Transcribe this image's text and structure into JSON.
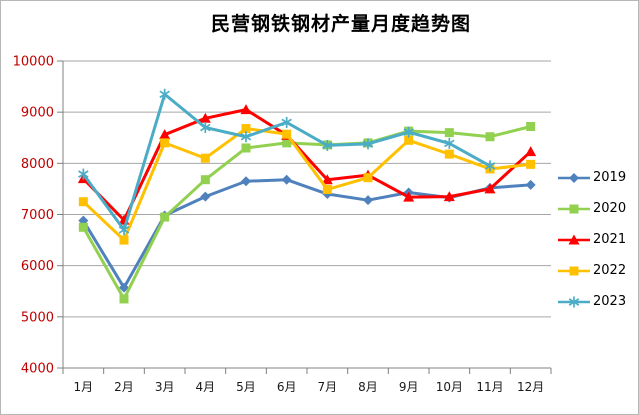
{
  "chart_data": {
    "type": "line",
    "title": "民营钢铁钢材产量月度趋势图",
    "categories": [
      "1月",
      "2月",
      "3月",
      "4月",
      "5月",
      "6月",
      "7月",
      "8月",
      "9月",
      "10月",
      "11月",
      "12月"
    ],
    "series": [
      {
        "name": "2019",
        "color": "#4F81BD",
        "marker": "diamond",
        "values": [
          6880,
          5570,
          6980,
          7350,
          7650,
          7680,
          7400,
          7280,
          7430,
          7330,
          7520,
          7580
        ]
      },
      {
        "name": "2020",
        "color": "#92D050",
        "marker": "square",
        "values": [
          6750,
          5350,
          6950,
          7680,
          8300,
          8400,
          8360,
          8400,
          8630,
          8600,
          8520,
          8720
        ]
      },
      {
        "name": "2021",
        "color": "#FF0000",
        "marker": "triangle",
        "values": [
          7700,
          6890,
          8560,
          8880,
          9050,
          8550,
          7680,
          7770,
          7340,
          7350,
          7500,
          8230
        ]
      },
      {
        "name": "2022",
        "color": "#FFC000",
        "marker": "square",
        "values": [
          7250,
          6500,
          8400,
          8100,
          8680,
          8570,
          7490,
          7720,
          8450,
          8180,
          7890,
          7980
        ]
      },
      {
        "name": "2023",
        "color": "#4BACC6",
        "marker": "star",
        "values": [
          7790,
          6700,
          9350,
          8700,
          8520,
          8800,
          8350,
          8380,
          8610,
          8390,
          7950,
          null
        ]
      }
    ],
    "ylim": [
      4000,
      10000
    ],
    "y_ticks": [
      4000,
      5000,
      6000,
      7000,
      8000,
      9000,
      10000
    ],
    "grid": true,
    "legend_position": "right",
    "y_tick_color": "#C00000",
    "x_tick_color": "#1A1A1A",
    "gridline_color": "#A6A6A6",
    "axis_color": "#808080"
  }
}
